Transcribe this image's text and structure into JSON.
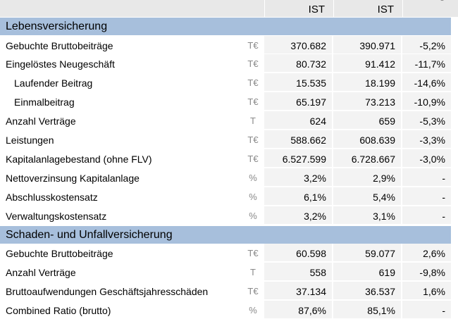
{
  "header": {
    "col1": "IST",
    "col2": "IST",
    "col3_partial": "-"
  },
  "sections": [
    {
      "title": "Lebensversicherung",
      "rows": [
        {
          "label": "Gebuchte Bruttobeiträge",
          "unit": "T€",
          "v1": "370.682",
          "v2": "390.971",
          "v3": "-5,2%",
          "indent": false
        },
        {
          "label": "Eingelöstes Neugeschäft",
          "unit": "T€",
          "v1": "80.732",
          "v2": "91.412",
          "v3": "-11,7%",
          "indent": false
        },
        {
          "label": "Laufender Beitrag",
          "unit": "T€",
          "v1": "15.535",
          "v2": "18.199",
          "v3": "-14,6%",
          "indent": true
        },
        {
          "label": "Einmalbeitrag",
          "unit": "T€",
          "v1": "65.197",
          "v2": "73.213",
          "v3": "-10,9%",
          "indent": true
        },
        {
          "label": "Anzahl Verträge",
          "unit": "T",
          "v1": "624",
          "v2": "659",
          "v3": "-5,3%",
          "indent": false
        },
        {
          "label": "Leistungen",
          "unit": "T€",
          "v1": "588.662",
          "v2": "608.639",
          "v3": "-3,3%",
          "indent": false
        },
        {
          "label": "Kapitalanlagebestand (ohne FLV)",
          "unit": "T€",
          "v1": "6.527.599",
          "v2": "6.728.667",
          "v3": "-3,0%",
          "indent": false
        },
        {
          "label": "Nettoverzinsung Kapitalanlage",
          "unit": "%",
          "v1": "3,2%",
          "v2": "2,9%",
          "v3": "-",
          "indent": false
        },
        {
          "label": "Abschlusskostensatz",
          "unit": "%",
          "v1": "6,1%",
          "v2": "5,4%",
          "v3": "-",
          "indent": false
        },
        {
          "label": "Verwaltungskostensatz",
          "unit": "%",
          "v1": "3,2%",
          "v2": "3,1%",
          "v3": "-",
          "indent": false
        }
      ]
    },
    {
      "title": "Schaden- und Unfallversicherung",
      "rows": [
        {
          "label": "Gebuchte Bruttobeiträge",
          "unit": "T€",
          "v1": "60.598",
          "v2": "59.077",
          "v3": "2,6%",
          "indent": false
        },
        {
          "label": "Anzahl Verträge",
          "unit": "T",
          "v1": "558",
          "v2": "619",
          "v3": "-9,8%",
          "indent": false
        },
        {
          "label": "Bruttoaufwendungen Geschäftsjahresschäden",
          "unit": "T€",
          "v1": "37.134",
          "v2": "36.537",
          "v3": "1,6%",
          "indent": false
        },
        {
          "label": "Combined Ratio (brutto)",
          "unit": "%",
          "v1": "87,6%",
          "v2": "85,1%",
          "v3": "-",
          "indent": false
        }
      ]
    }
  ]
}
